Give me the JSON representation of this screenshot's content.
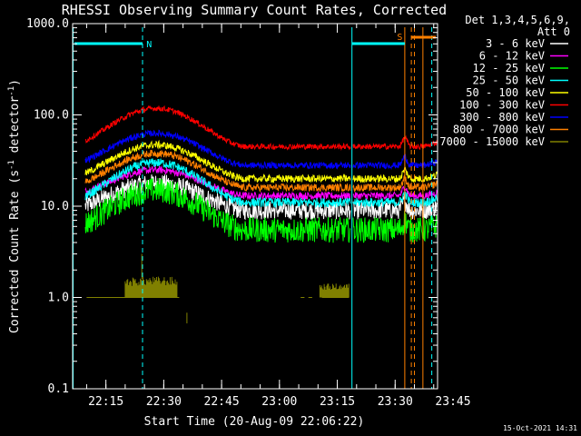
{
  "chart_data": {
    "type": "line",
    "title": "RHESSI Observing Summary Count Rates, Corrected",
    "xlabel": "Start Time (20-Aug-09 22:06:22)",
    "ylabel": "Corrected Count Rate (s⁻¹ detector⁻¹)",
    "ylabel_main": "Corrected Count Rate (s",
    "ylabel_sup1": "-1",
    "ylabel_mid": " detector",
    "ylabel_sup2": "-1",
    "ylabel_end": ")",
    "yscale": "log",
    "ylim": [
      0.1,
      1000
    ],
    "xlim_minutes": [
      6.37,
      101
    ],
    "x_ticks": [
      {
        "m": 15,
        "label": "22:15"
      },
      {
        "m": 30,
        "label": "22:30"
      },
      {
        "m": 45,
        "label": "22:45"
      },
      {
        "m": 60,
        "label": "23:00"
      },
      {
        "m": 75,
        "label": "23:15"
      },
      {
        "m": 90,
        "label": "23:30"
      },
      {
        "m": 105,
        "label": "23:45"
      }
    ],
    "y_ticks": [
      {
        "v": 1000,
        "label": "1000.0"
      },
      {
        "v": 100,
        "label": "100.0"
      },
      {
        "v": 10,
        "label": "10.0"
      },
      {
        "v": 1,
        "label": "1.0"
      },
      {
        "v": 0.1,
        "label": "0.1"
      }
    ],
    "legend_header1": "Det 1,3,4,5,6,9,",
    "legend_header2": "Att 0",
    "series": [
      {
        "name": "3 - 6 keV",
        "color": "#ffffff",
        "base": 9,
        "peak": 18,
        "noise": 0.1
      },
      {
        "name": "6 - 12 keV",
        "color": "#ff00ff",
        "base": 13,
        "peak": 25,
        "noise": 0.04
      },
      {
        "name": "12 - 25 keV",
        "color": "#00ff00",
        "base": 5.5,
        "peak": 15,
        "noise": 0.14
      },
      {
        "name": "25 - 50 keV",
        "color": "#00ffff",
        "base": 11,
        "peak": 30,
        "noise": 0.05
      },
      {
        "name": "50 - 100 keV",
        "color": "#ffff00",
        "base": 20,
        "peak": 47,
        "noise": 0.04
      },
      {
        "name": "100 - 300 keV",
        "color": "#ff0000",
        "base": 45,
        "peak": 118,
        "noise": 0.03
      },
      {
        "name": "300 - 800 keV",
        "color": "#0000ff",
        "base": 28,
        "peak": 63,
        "noise": 0.035
      },
      {
        "name": "800 - 7000 keV",
        "color": "#ff8000",
        "base": 16,
        "peak": 38,
        "noise": 0.04
      },
      {
        "name": "7000 - 15000 keV",
        "color": "#808000",
        "base": null,
        "peak": 1.7,
        "noise": 0.0
      }
    ],
    "annotations": {
      "saa_label": "N",
      "flare_label": "S",
      "cyan_vlines_minutes": [
        6.5,
        24.5,
        78.8,
        99.5
      ],
      "orange_vlines_minutes": [
        92.5,
        94.2,
        95.0,
        97.2
      ]
    },
    "timestamp": "15-Oct-2021 14:31"
  }
}
